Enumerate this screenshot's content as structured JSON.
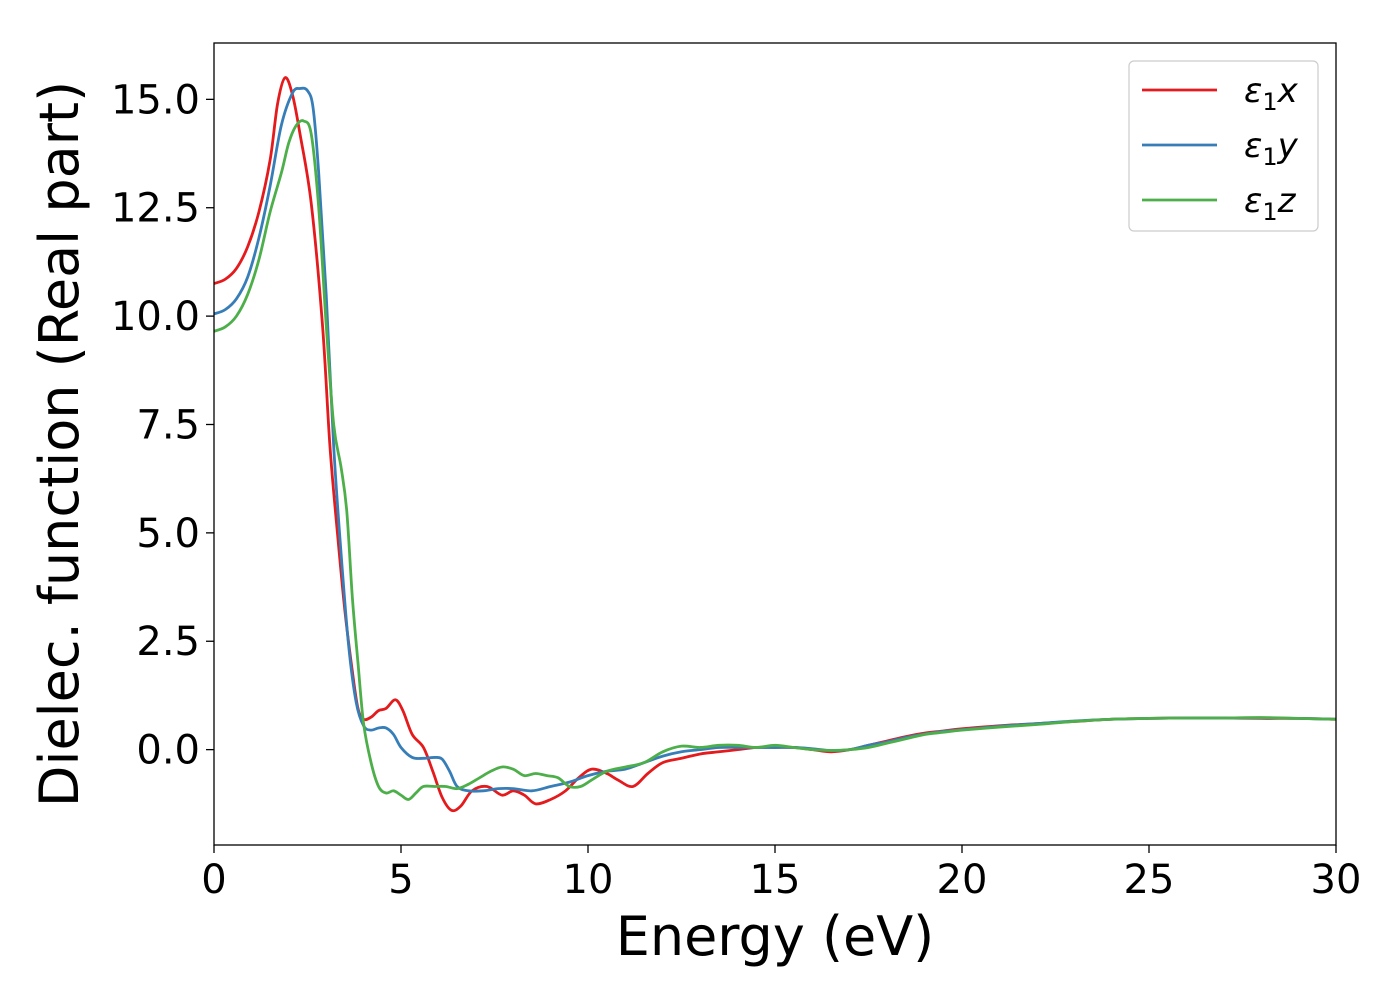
{
  "chart_data": {
    "type": "line",
    "title": "",
    "xlabel": "Energy (eV)",
    "ylabel": "Dielec. function (Real part)",
    "xlim": [
      0,
      30
    ],
    "ylim": [
      -2.2,
      16.3
    ],
    "grid": false,
    "legend_position": "top-right",
    "x_ticks": [
      0,
      5,
      10,
      15,
      20,
      25,
      30
    ],
    "x_tick_labels": [
      "0",
      "5",
      "10",
      "15",
      "20",
      "25",
      "30"
    ],
    "y_ticks": [
      0,
      2.5,
      5,
      7.5,
      10,
      12.5,
      15
    ],
    "y_tick_labels": [
      "0.0",
      "2.5",
      "5.0",
      "7.5",
      "10.0",
      "12.5",
      "15.0"
    ],
    "series": [
      {
        "name": "ε₁x",
        "legend_main": "ε",
        "legend_sub": "1",
        "legend_suffix": "x",
        "color": "#e41a1c",
        "points": [
          [
            0,
            10.75
          ],
          [
            0.3,
            10.85
          ],
          [
            0.6,
            11.1
          ],
          [
            0.9,
            11.6
          ],
          [
            1.2,
            12.4
          ],
          [
            1.5,
            13.6
          ],
          [
            1.7,
            14.9
          ],
          [
            1.9,
            15.5
          ],
          [
            2.1,
            15.1
          ],
          [
            2.3,
            14.2
          ],
          [
            2.6,
            12.6
          ],
          [
            2.9,
            9.8
          ],
          [
            3.1,
            7.0
          ],
          [
            3.3,
            5.0
          ],
          [
            3.5,
            3.2
          ],
          [
            3.7,
            1.8
          ],
          [
            3.85,
            0.95
          ],
          [
            4.0,
            0.7
          ],
          [
            4.2,
            0.75
          ],
          [
            4.4,
            0.9
          ],
          [
            4.6,
            0.95
          ],
          [
            4.85,
            1.15
          ],
          [
            5.05,
            0.9
          ],
          [
            5.3,
            0.35
          ],
          [
            5.6,
            0.05
          ],
          [
            5.85,
            -0.5
          ],
          [
            6.1,
            -1.1
          ],
          [
            6.35,
            -1.4
          ],
          [
            6.6,
            -1.3
          ],
          [
            6.9,
            -0.95
          ],
          [
            7.3,
            -0.85
          ],
          [
            7.7,
            -1.05
          ],
          [
            8.0,
            -0.95
          ],
          [
            8.3,
            -1.05
          ],
          [
            8.6,
            -1.25
          ],
          [
            9.0,
            -1.15
          ],
          [
            9.4,
            -0.95
          ],
          [
            9.75,
            -0.65
          ],
          [
            10.1,
            -0.45
          ],
          [
            10.5,
            -0.55
          ],
          [
            10.8,
            -0.7
          ],
          [
            11.2,
            -0.85
          ],
          [
            11.6,
            -0.55
          ],
          [
            12.0,
            -0.3
          ],
          [
            12.5,
            -0.2
          ],
          [
            13.0,
            -0.1
          ],
          [
            13.5,
            -0.05
          ],
          [
            14.0,
            0.0
          ],
          [
            14.5,
            0.05
          ],
          [
            15.0,
            0.05
          ],
          [
            15.5,
            0.05
          ],
          [
            16.0,
            0.0
          ],
          [
            16.5,
            -0.05
          ],
          [
            17.0,
            0.0
          ],
          [
            17.5,
            0.1
          ],
          [
            18.0,
            0.2
          ],
          [
            18.5,
            0.3
          ],
          [
            19.0,
            0.38
          ],
          [
            19.5,
            0.43
          ],
          [
            20.0,
            0.48
          ],
          [
            21.0,
            0.55
          ],
          [
            22.0,
            0.6
          ],
          [
            23.0,
            0.65
          ],
          [
            24.0,
            0.7
          ],
          [
            25.0,
            0.72
          ],
          [
            26.0,
            0.73
          ],
          [
            27.0,
            0.73
          ],
          [
            28.0,
            0.72
          ],
          [
            29.0,
            0.72
          ],
          [
            30.0,
            0.7
          ]
        ]
      },
      {
        "name": "ε₁y",
        "legend_main": "ε",
        "legend_sub": "1",
        "legend_suffix": "y",
        "color": "#377eb8",
        "points": [
          [
            0,
            10.05
          ],
          [
            0.3,
            10.15
          ],
          [
            0.6,
            10.4
          ],
          [
            0.9,
            10.9
          ],
          [
            1.2,
            11.8
          ],
          [
            1.5,
            13.0
          ],
          [
            1.8,
            14.4
          ],
          [
            2.1,
            15.15
          ],
          [
            2.3,
            15.25
          ],
          [
            2.5,
            15.2
          ],
          [
            2.65,
            14.8
          ],
          [
            2.8,
            13.3
          ],
          [
            3.0,
            10.5
          ],
          [
            3.2,
            7.0
          ],
          [
            3.4,
            4.5
          ],
          [
            3.6,
            2.4
          ],
          [
            3.8,
            1.1
          ],
          [
            4.0,
            0.55
          ],
          [
            4.2,
            0.45
          ],
          [
            4.4,
            0.5
          ],
          [
            4.6,
            0.5
          ],
          [
            4.8,
            0.35
          ],
          [
            5.0,
            0.05
          ],
          [
            5.3,
            -0.18
          ],
          [
            5.6,
            -0.2
          ],
          [
            5.9,
            -0.18
          ],
          [
            6.1,
            -0.22
          ],
          [
            6.3,
            -0.5
          ],
          [
            6.5,
            -0.85
          ],
          [
            6.8,
            -0.95
          ],
          [
            7.2,
            -0.95
          ],
          [
            7.6,
            -0.9
          ],
          [
            8.0,
            -0.9
          ],
          [
            8.5,
            -0.95
          ],
          [
            9.0,
            -0.85
          ],
          [
            9.5,
            -0.75
          ],
          [
            10.0,
            -0.6
          ],
          [
            10.5,
            -0.5
          ],
          [
            11.0,
            -0.45
          ],
          [
            11.5,
            -0.3
          ],
          [
            12.0,
            -0.15
          ],
          [
            12.5,
            -0.05
          ],
          [
            13.0,
            0.0
          ],
          [
            13.5,
            0.05
          ],
          [
            14.0,
            0.05
          ],
          [
            14.5,
            0.05
          ],
          [
            15.0,
            0.05
          ],
          [
            15.5,
            0.05
          ],
          [
            16.0,
            0.02
          ],
          [
            16.5,
            -0.02
          ],
          [
            17.0,
            0.0
          ],
          [
            17.5,
            0.1
          ],
          [
            18.0,
            0.18
          ],
          [
            18.5,
            0.28
          ],
          [
            19.0,
            0.36
          ],
          [
            19.5,
            0.42
          ],
          [
            20.0,
            0.46
          ],
          [
            21.0,
            0.54
          ],
          [
            22.0,
            0.6
          ],
          [
            23.0,
            0.66
          ],
          [
            24.0,
            0.7
          ],
          [
            25.0,
            0.72
          ],
          [
            26.0,
            0.73
          ],
          [
            27.0,
            0.73
          ],
          [
            28.0,
            0.73
          ],
          [
            29.0,
            0.72
          ],
          [
            30.0,
            0.7
          ]
        ]
      },
      {
        "name": "ε₁z",
        "legend_main": "ε",
        "legend_sub": "1",
        "legend_suffix": "z",
        "color": "#4daf4a",
        "points": [
          [
            0,
            9.65
          ],
          [
            0.3,
            9.75
          ],
          [
            0.6,
            10.0
          ],
          [
            0.9,
            10.5
          ],
          [
            1.2,
            11.3
          ],
          [
            1.5,
            12.4
          ],
          [
            1.8,
            13.3
          ],
          [
            2.0,
            14.0
          ],
          [
            2.2,
            14.4
          ],
          [
            2.4,
            14.5
          ],
          [
            2.6,
            14.2
          ],
          [
            2.8,
            12.5
          ],
          [
            3.0,
            9.8
          ],
          [
            3.2,
            7.5
          ],
          [
            3.4,
            6.5
          ],
          [
            3.55,
            5.5
          ],
          [
            3.7,
            3.5
          ],
          [
            3.85,
            2.0
          ],
          [
            4.0,
            0.6
          ],
          [
            4.2,
            -0.3
          ],
          [
            4.4,
            -0.85
          ],
          [
            4.6,
            -1.0
          ],
          [
            4.8,
            -0.95
          ],
          [
            5.0,
            -1.05
          ],
          [
            5.2,
            -1.15
          ],
          [
            5.4,
            -1.0
          ],
          [
            5.6,
            -0.85
          ],
          [
            5.9,
            -0.85
          ],
          [
            6.2,
            -0.85
          ],
          [
            6.5,
            -0.9
          ],
          [
            6.8,
            -0.8
          ],
          [
            7.1,
            -0.65
          ],
          [
            7.4,
            -0.5
          ],
          [
            7.7,
            -0.4
          ],
          [
            8.0,
            -0.45
          ],
          [
            8.3,
            -0.6
          ],
          [
            8.6,
            -0.55
          ],
          [
            8.9,
            -0.6
          ],
          [
            9.2,
            -0.65
          ],
          [
            9.5,
            -0.85
          ],
          [
            9.8,
            -0.85
          ],
          [
            10.1,
            -0.7
          ],
          [
            10.5,
            -0.5
          ],
          [
            11.0,
            -0.4
          ],
          [
            11.5,
            -0.3
          ],
          [
            12.0,
            -0.05
          ],
          [
            12.5,
            0.08
          ],
          [
            13.0,
            0.05
          ],
          [
            13.5,
            0.1
          ],
          [
            14.0,
            0.1
          ],
          [
            14.5,
            0.05
          ],
          [
            15.0,
            0.1
          ],
          [
            15.5,
            0.05
          ],
          [
            16.0,
            0.0
          ],
          [
            16.5,
            -0.02
          ],
          [
            17.0,
            0.0
          ],
          [
            17.5,
            0.05
          ],
          [
            18.0,
            0.15
          ],
          [
            18.5,
            0.25
          ],
          [
            19.0,
            0.35
          ],
          [
            19.5,
            0.4
          ],
          [
            20.0,
            0.45
          ],
          [
            21.0,
            0.52
          ],
          [
            22.0,
            0.58
          ],
          [
            23.0,
            0.65
          ],
          [
            24.0,
            0.7
          ],
          [
            25.0,
            0.72
          ],
          [
            26.0,
            0.73
          ],
          [
            27.0,
            0.73
          ],
          [
            28.0,
            0.74
          ],
          [
            29.0,
            0.72
          ],
          [
            30.0,
            0.7
          ]
        ]
      }
    ]
  }
}
